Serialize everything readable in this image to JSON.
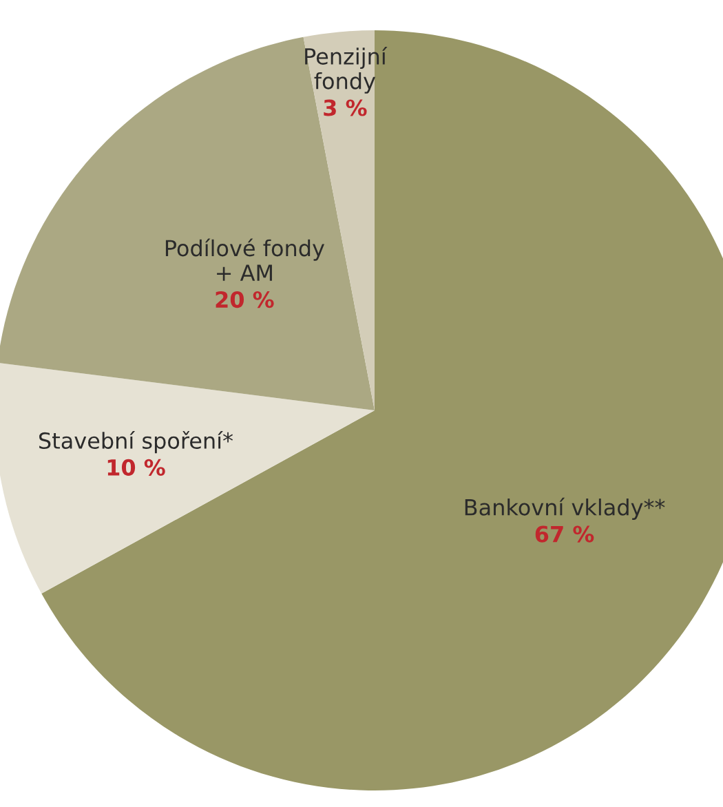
{
  "chart_data": {
    "type": "pie",
    "categories": [
      "Bankovní vklady**",
      "Stavební spoření*",
      "Podílové fondy\n+ AM",
      "Penzijní\nfondy"
    ],
    "values": [
      67,
      10,
      20,
      3
    ],
    "value_labels": [
      "67 %",
      "10 %",
      "20 %",
      "3 %"
    ],
    "colors": [
      "#999766",
      "#e6e2d4",
      "#aba883",
      "#d3cdb8"
    ]
  }
}
